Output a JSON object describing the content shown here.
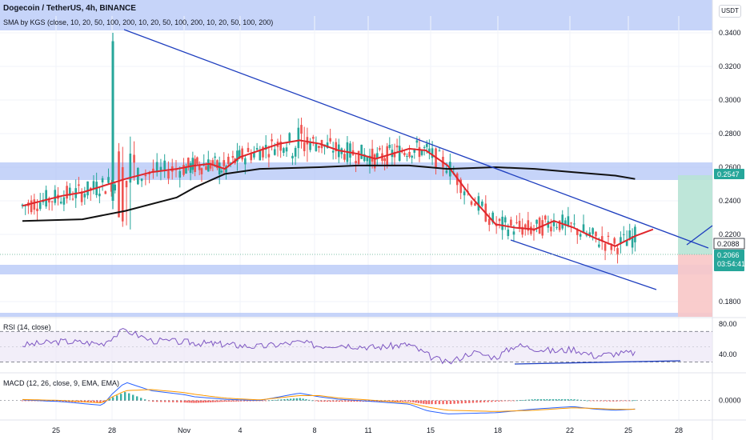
{
  "header": {
    "symbol_line": "Dogecoin / TetherUS, 4h, BINANCE",
    "indicator_line": "SMA by KGS (close, 10, 20, 50, 100, 200, 10, 20, 50, 100, 200, 10, 20, 50, 100, 200)",
    "currency": "USDT"
  },
  "price_labels": {
    "upper_target": "0.2547",
    "box_price": "0.2088",
    "last_price": "0.2066",
    "countdown": "03:54:41"
  },
  "rsi_title": "RSI (14, close)",
  "macd_title": "MACD (12, 26, close, 9, EMA, EMA)",
  "colors": {
    "up": "#26a69a",
    "down": "#ef5350",
    "sma_fast": "#e0262b",
    "sma_slow": "#111111",
    "trendline": "#1f3fbf",
    "zone": "#b3c6f7",
    "rsi_line": "#7e57c2",
    "macd_line": "#2962ff",
    "signal_line": "#ff9800",
    "target_box": "#b7e3d5",
    "stop_box": "#f8c6c6"
  },
  "chart_data": [
    {
      "type": "line",
      "panel": "price",
      "title": "Dogecoin / TetherUS, 4h, BINANCE",
      "ylabel": "USDT",
      "ylim": [
        0.172,
        0.345
      ],
      "yticks": [
        "0.3400",
        "0.3200",
        "0.3000",
        "0.2800",
        "0.2600",
        "0.2400",
        "0.2200",
        "0.1800"
      ],
      "xticks": [
        "25",
        "28",
        "Nov",
        "4",
        "8",
        "11",
        "15",
        "18",
        "22",
        "25",
        "28"
      ],
      "series": [
        {
          "values": [
            [
              0,
              0.237
            ],
            [
              2,
              0.243
            ],
            [
              3,
              0.245
            ],
            [
              5,
              0.253
            ],
            [
              6,
              0.257
            ],
            [
              7,
              0.259
            ],
            [
              8,
              0.261
            ],
            [
              9,
              0.262
            ],
            [
              10,
              0.259
            ],
            [
              11,
              0.266
            ],
            [
              12,
              0.27
            ],
            [
              13,
              0.274
            ],
            [
              14,
              0.276
            ],
            [
              15,
              0.274
            ],
            [
              16,
              0.27
            ],
            [
              17,
              0.268
            ],
            [
              18,
              0.265
            ],
            [
              19,
              0.268
            ],
            [
              20,
              0.271
            ],
            [
              21,
              0.27
            ],
            [
              22,
              0.261
            ],
            [
              23,
              0.242
            ],
            [
              24,
              0.226
            ],
            [
              25,
              0.224
            ],
            [
              26,
              0.223
            ],
            [
              27,
              0.228
            ],
            [
              28,
              0.224
            ],
            [
              29,
              0.218
            ],
            [
              30,
              0.213
            ],
            [
              31,
              0.219
            ],
            [
              32,
              0.223
            ]
          ]
        },
        {
          "values": [
            [
              0,
              0.228
            ],
            [
              3,
              0.229
            ],
            [
              5,
              0.234
            ],
            [
              7,
              0.242
            ],
            [
              8,
              0.248
            ],
            [
              10,
              0.256
            ],
            [
              12,
              0.259
            ],
            [
              15,
              0.26
            ],
            [
              17,
              0.261
            ],
            [
              20,
              0.261
            ],
            [
              22,
              0.259
            ],
            [
              24,
              0.26
            ],
            [
              26,
              0.259
            ],
            [
              28,
              0.257
            ],
            [
              30,
              0.255
            ],
            [
              31,
              0.253
            ]
          ]
        }
      ]
    },
    {
      "type": "line",
      "panel": "rsi",
      "title": "RSI (14, close)",
      "ylim": [
        20,
        85
      ],
      "yticks": [
        "80.00",
        "40.00"
      ],
      "bands": [
        70,
        30
      ],
      "values": [
        [
          0,
          52
        ],
        [
          2,
          57
        ],
        [
          4,
          54
        ],
        [
          5,
          72
        ],
        [
          6,
          58
        ],
        [
          8,
          55
        ],
        [
          10,
          53
        ],
        [
          12,
          50
        ],
        [
          14,
          56
        ],
        [
          15,
          51
        ],
        [
          16,
          53
        ],
        [
          18,
          49
        ],
        [
          20,
          53
        ],
        [
          22,
          28
        ],
        [
          23,
          43
        ],
        [
          24,
          36
        ],
        [
          25,
          52
        ],
        [
          26,
          48
        ],
        [
          27,
          44
        ],
        [
          28,
          47
        ],
        [
          29,
          38
        ],
        [
          30,
          41
        ],
        [
          31,
          42
        ]
      ]
    },
    {
      "type": "bar",
      "panel": "macd",
      "title": "MACD (12, 26, close, 9, EMA, EMA)",
      "ylim": [
        -0.014,
        0.02
      ],
      "yticks": [
        "0.0000"
      ],
      "macd": [
        [
          0,
          0.0005
        ],
        [
          2,
          -0.001
        ],
        [
          4,
          -0.004
        ],
        [
          5,
          0.015
        ],
        [
          6,
          0.008
        ],
        [
          8,
          0.003
        ],
        [
          10,
          0.001
        ],
        [
          12,
          0.0
        ],
        [
          14,
          0.006
        ],
        [
          15,
          0.003
        ],
        [
          16,
          0.001
        ],
        [
          18,
          -0.001
        ],
        [
          20,
          -0.003
        ],
        [
          21,
          -0.008
        ],
        [
          22,
          -0.011
        ],
        [
          24,
          -0.01
        ],
        [
          26,
          -0.007
        ],
        [
          28,
          -0.005
        ],
        [
          29,
          -0.007
        ],
        [
          30,
          -0.008
        ],
        [
          31,
          -0.007
        ]
      ],
      "signal": [
        [
          0,
          0.0008
        ],
        [
          2,
          0.0
        ],
        [
          4,
          -0.002
        ],
        [
          5,
          0.008
        ],
        [
          6,
          0.009
        ],
        [
          8,
          0.005
        ],
        [
          10,
          0.002
        ],
        [
          12,
          0.0005
        ],
        [
          14,
          0.004
        ],
        [
          15,
          0.004
        ],
        [
          16,
          0.002
        ],
        [
          18,
          0.0
        ],
        [
          20,
          -0.002
        ],
        [
          21,
          -0.005
        ],
        [
          22,
          -0.008
        ],
        [
          24,
          -0.009
        ],
        [
          26,
          -0.008
        ],
        [
          28,
          -0.006
        ],
        [
          29,
          -0.0065
        ],
        [
          30,
          -0.0072
        ],
        [
          31,
          -0.0072
        ]
      ]
    }
  ]
}
